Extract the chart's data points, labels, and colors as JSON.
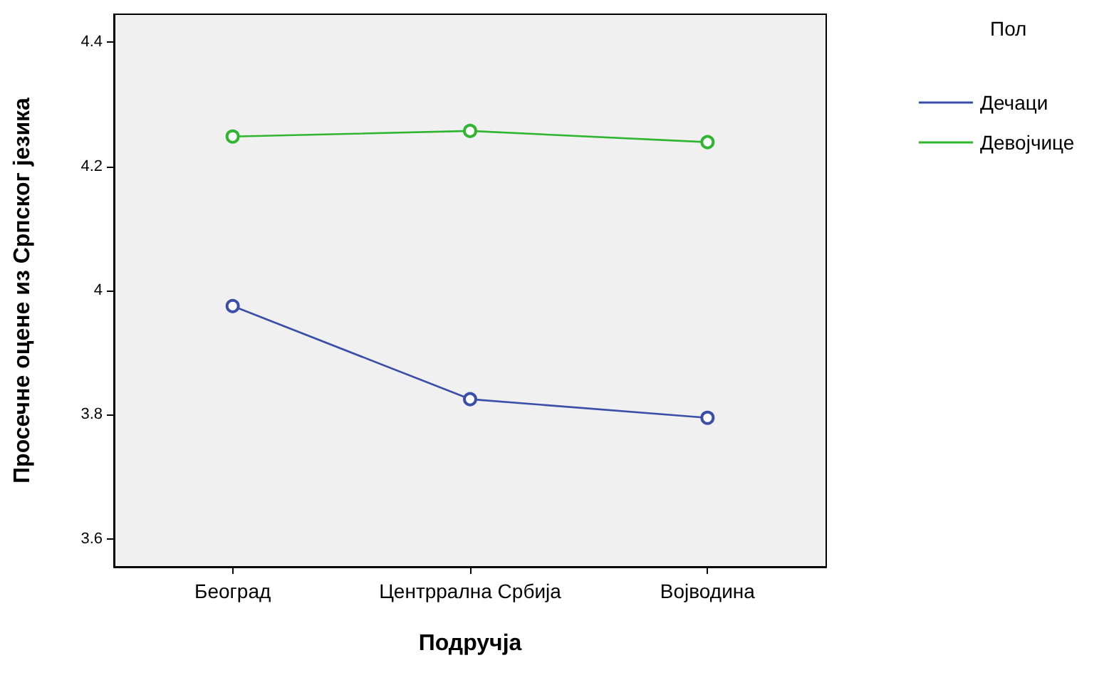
{
  "chart_data": {
    "type": "line",
    "xlabel": "Подручја",
    "ylabel": "Просечне оцене из Српског језика",
    "legend_title": "Пол",
    "categories": [
      "Београд",
      "Центррална Србија",
      "Војводина"
    ],
    "series": [
      {
        "name": "Дечаци",
        "color": "#3b4fa8",
        "values": [
          3.975,
          3.825,
          3.795
        ]
      },
      {
        "name": "Девојчице",
        "color": "#2fb52f",
        "values": [
          4.248,
          4.257,
          4.239
        ]
      }
    ],
    "ylim": [
      3.555,
      4.445
    ],
    "yticks": [
      3.6,
      3.8,
      4,
      4.2,
      4.4
    ],
    "grid": false,
    "legend": "right",
    "marker": "circle",
    "line_style": "solid"
  }
}
